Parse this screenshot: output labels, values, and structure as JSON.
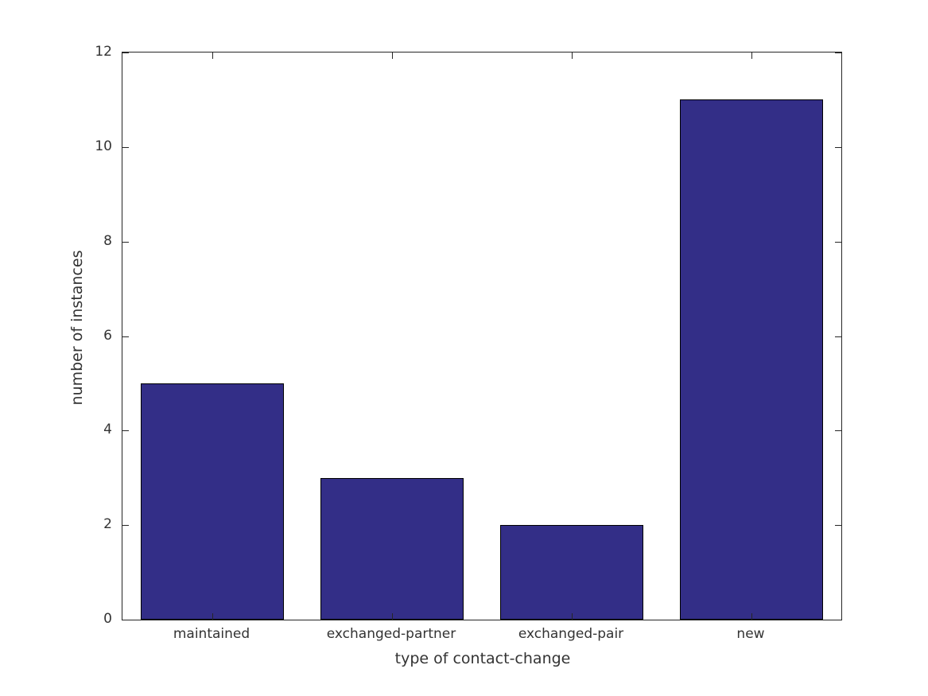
{
  "chart_data": {
    "type": "bar",
    "categories": [
      "maintained",
      "exchanged-partner",
      "exchanged-pair",
      "new"
    ],
    "values": [
      5,
      3,
      2,
      11
    ],
    "title": "",
    "xlabel": "type of contact-change",
    "ylabel": "number of instances",
    "ylim": [
      0,
      12
    ],
    "yticks": [
      0,
      2,
      4,
      6,
      8,
      10,
      12
    ],
    "bar_color": "#332e87",
    "bar_edge_color": "#000000",
    "axis_color": "#262626",
    "background_color": "#ffffff",
    "grid": false,
    "legend": null,
    "bar_width_fraction": 0.8,
    "tick_direction": "in",
    "box": true
  }
}
